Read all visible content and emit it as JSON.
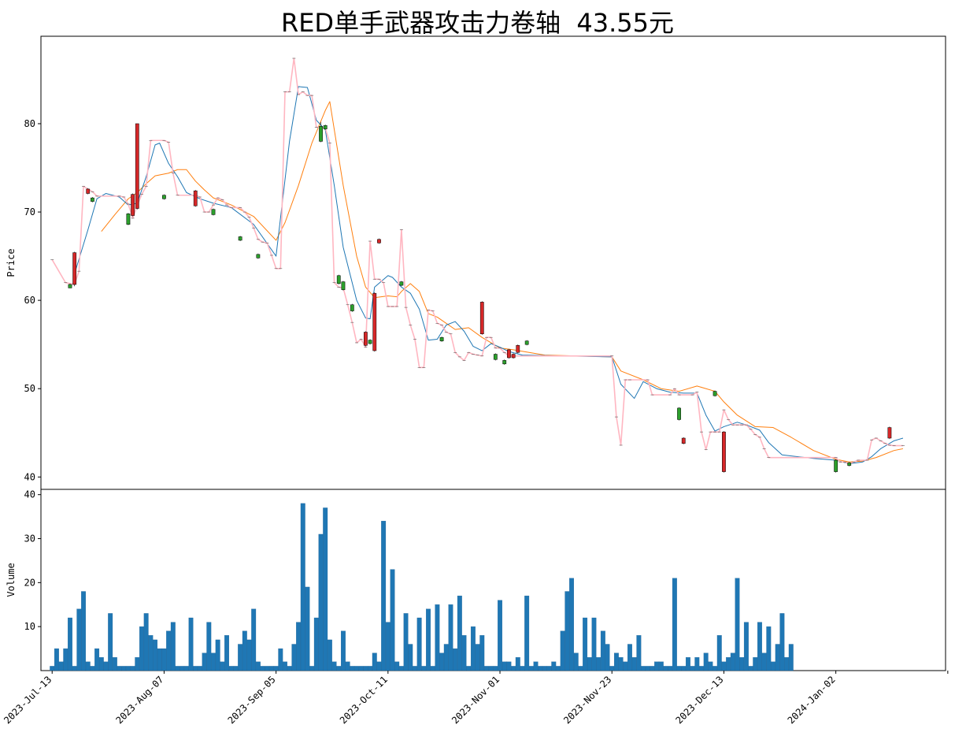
{
  "title": "RED单手武器攻击力卷轴  43.55元",
  "chart_data": {
    "type": "candlestick",
    "price_panel": {
      "ylabel": "Price",
      "yticks": [
        40,
        50,
        60,
        70,
        80
      ],
      "ylim": [
        38.6,
        89.9
      ]
    },
    "volume_panel": {
      "ylabel": "Volume",
      "yticks": [
        10,
        20,
        30,
        40
      ],
      "ylim": [
        0,
        41.2
      ]
    },
    "xlim": [
      -2.5,
      199.5
    ],
    "x_tick_labels": [
      {
        "label": "2023-Jul-13",
        "index": 0
      },
      {
        "label": "2023-Aug-07",
        "index": 25
      },
      {
        "label": "2023-Sep-05",
        "index": 50
      },
      {
        "label": "2023-Oct-11",
        "index": 75
      },
      {
        "label": "2023-Nov-01",
        "index": 100
      },
      {
        "label": "2023-Nov-23",
        "index": 125
      },
      {
        "label": "2023-Dec-13",
        "index": 150
      },
      {
        "label": "2024-Jan-02",
        "index": 175
      },
      {
        "label": "",
        "index": 200
      }
    ],
    "colors": {
      "up": "#d62728",
      "down": "#2ca02c",
      "close_line": "#ffb6c1",
      "ma_fast": "#1f77b4",
      "ma_slow": "#ff7f0e",
      "volume": "#1f77b4"
    },
    "close_keypoints": [
      [
        0,
        64.6
      ],
      [
        3,
        62
      ],
      [
        5,
        61.8
      ],
      [
        6,
        63.3
      ],
      [
        7,
        72.9
      ],
      [
        9,
        72.3
      ],
      [
        10,
        71.8
      ],
      [
        15,
        71.8
      ],
      [
        16,
        71.7
      ],
      [
        17,
        70.9
      ],
      [
        18,
        69.3
      ],
      [
        19,
        70.7
      ],
      [
        20,
        72
      ],
      [
        21,
        72.9
      ],
      [
        22,
        78.1
      ],
      [
        25,
        78.1
      ],
      [
        26,
        77.9
      ],
      [
        27,
        74.4
      ],
      [
        28,
        71.9
      ],
      [
        32,
        71.9
      ],
      [
        33,
        71.7
      ],
      [
        34,
        70
      ],
      [
        35,
        70
      ],
      [
        36,
        70.8
      ],
      [
        37,
        71.6
      ],
      [
        38,
        71.4
      ],
      [
        39,
        70.8
      ],
      [
        40,
        70.5
      ],
      [
        42,
        70.5
      ],
      [
        43,
        70
      ],
      [
        44,
        69.4
      ],
      [
        45,
        68.2
      ],
      [
        46,
        66.9
      ],
      [
        47,
        66.6
      ],
      [
        48,
        66.5
      ],
      [
        49,
        65.1
      ],
      [
        50,
        63.6
      ],
      [
        51,
        63.6
      ],
      [
        52,
        83.6
      ],
      [
        53,
        83.6
      ],
      [
        54,
        87.4
      ],
      [
        55,
        83.3
      ],
      [
        56,
        83.6
      ],
      [
        57,
        83.2
      ],
      [
        58,
        83.2
      ],
      [
        59,
        79.6
      ],
      [
        61,
        79.5
      ],
      [
        62,
        77.8
      ],
      [
        63,
        62
      ],
      [
        64,
        61.5
      ],
      [
        65,
        61.4
      ],
      [
        66,
        59.5
      ],
      [
        67,
        57.5
      ],
      [
        68,
        55.2
      ],
      [
        69,
        55.6
      ],
      [
        70,
        54.7
      ],
      [
        71,
        66.7
      ],
      [
        72,
        62.4
      ],
      [
        73,
        62.4
      ],
      [
        74,
        62
      ],
      [
        75,
        59.3
      ],
      [
        76,
        59.3
      ],
      [
        77,
        59.3
      ],
      [
        78,
        68
      ],
      [
        79,
        59.2
      ],
      [
        80,
        57.2
      ],
      [
        81,
        55.6
      ],
      [
        82,
        52.4
      ],
      [
        83,
        52.4
      ],
      [
        84,
        58.9
      ],
      [
        85,
        58.8
      ],
      [
        86,
        57.4
      ],
      [
        87,
        57.2
      ],
      [
        88,
        56.4
      ],
      [
        89,
        56.2
      ],
      [
        90,
        54.1
      ],
      [
        91,
        53.6
      ],
      [
        92,
        53.2
      ],
      [
        93,
        54.1
      ],
      [
        94,
        53.9
      ],
      [
        95,
        53.8
      ],
      [
        96,
        53.7
      ],
      [
        97,
        55.8
      ],
      [
        98,
        55.8
      ],
      [
        99,
        54.6
      ],
      [
        100,
        54.6
      ],
      [
        101,
        54.1
      ],
      [
        102,
        53.7
      ],
      [
        125,
        53.7
      ],
      [
        126,
        46.8
      ],
      [
        127,
        43.6
      ],
      [
        128,
        51
      ],
      [
        129,
        51
      ],
      [
        133,
        51
      ],
      [
        134,
        49.3
      ],
      [
        138,
        49.3
      ],
      [
        139,
        50
      ],
      [
        140,
        49.3
      ],
      [
        143,
        49.3
      ],
      [
        144,
        49.6
      ],
      [
        145,
        45.1
      ],
      [
        146,
        43.1
      ],
      [
        147,
        45.1
      ],
      [
        148,
        45.1
      ],
      [
        149,
        45.1
      ],
      [
        150,
        47.6
      ],
      [
        151,
        46.5
      ],
      [
        152,
        45.9
      ],
      [
        153,
        45.9
      ],
      [
        154,
        45.9
      ],
      [
        155,
        45.9
      ],
      [
        156,
        45.4
      ],
      [
        157,
        44.8
      ],
      [
        158,
        44.5
      ],
      [
        159,
        43.2
      ],
      [
        160,
        42.2
      ],
      [
        175,
        42.2
      ],
      [
        176,
        41.7
      ],
      [
        177,
        41.7
      ],
      [
        178,
        41.5
      ],
      [
        179,
        41.7
      ],
      [
        180,
        41.9
      ],
      [
        182,
        41.9
      ],
      [
        183,
        44.2
      ],
      [
        184,
        44.4
      ],
      [
        185,
        44.1
      ],
      [
        186,
        43.8
      ],
      [
        187,
        43.6
      ],
      [
        188,
        43.55
      ],
      [
        190,
        43.55
      ]
    ],
    "ma_fast": [
      [
        5,
        63
      ],
      [
        8,
        68
      ],
      [
        10,
        71.5
      ],
      [
        12,
        72.1
      ],
      [
        15,
        71.7
      ],
      [
        17,
        70.8
      ],
      [
        19,
        71
      ],
      [
        21,
        74
      ],
      [
        23,
        77.6
      ],
      [
        24,
        77.8
      ],
      [
        26,
        75.5
      ],
      [
        28,
        74
      ],
      [
        30,
        72.2
      ],
      [
        33,
        71.5
      ],
      [
        36,
        71
      ],
      [
        40,
        70.5
      ],
      [
        45,
        68.6
      ],
      [
        50,
        65
      ],
      [
        53,
        78
      ],
      [
        55,
        84.2
      ],
      [
        57,
        84.1
      ],
      [
        59,
        80.4
      ],
      [
        61,
        79.3
      ],
      [
        63,
        73
      ],
      [
        65,
        66
      ],
      [
        68,
        60
      ],
      [
        70,
        58
      ],
      [
        71,
        57.9
      ],
      [
        72,
        61.5
      ],
      [
        75,
        62.8
      ],
      [
        76,
        62.6
      ],
      [
        78,
        61.5
      ],
      [
        80,
        60.8
      ],
      [
        82,
        59
      ],
      [
        84,
        55.5
      ],
      [
        86,
        55.6
      ],
      [
        88,
        57.2
      ],
      [
        90,
        57.6
      ],
      [
        92,
        56.5
      ],
      [
        94,
        54.8
      ],
      [
        96,
        54.3
      ],
      [
        98,
        55.1
      ],
      [
        100,
        54.7
      ],
      [
        102,
        54.2
      ],
      [
        105,
        53.8
      ],
      [
        125,
        53.6
      ],
      [
        127,
        50.5
      ],
      [
        130,
        48.9
      ],
      [
        132,
        50.8
      ],
      [
        135,
        50
      ],
      [
        138,
        49.6
      ],
      [
        141,
        49.5
      ],
      [
        144,
        49.5
      ],
      [
        146,
        47
      ],
      [
        148,
        45.2
      ],
      [
        150,
        45.7
      ],
      [
        153,
        46.2
      ],
      [
        155,
        45.9
      ],
      [
        158,
        45.3
      ],
      [
        160,
        43.9
      ],
      [
        163,
        42.5
      ],
      [
        170,
        42.1
      ],
      [
        175,
        41.9
      ],
      [
        178,
        41.5
      ],
      [
        181,
        41.7
      ],
      [
        183,
        42.3
      ],
      [
        185,
        43.2
      ],
      [
        188,
        44.1
      ],
      [
        190,
        44.4
      ]
    ],
    "ma_slow": [
      [
        11,
        67.8
      ],
      [
        14,
        69.7
      ],
      [
        17,
        71.5
      ],
      [
        19,
        72.2
      ],
      [
        21,
        73.2
      ],
      [
        23,
        74.1
      ],
      [
        26,
        74.4
      ],
      [
        28,
        74.8
      ],
      [
        30,
        74.8
      ],
      [
        32,
        73.5
      ],
      [
        34,
        72.5
      ],
      [
        36,
        71.6
      ],
      [
        40,
        70.8
      ],
      [
        45,
        69.5
      ],
      [
        50,
        66.8
      ],
      [
        52,
        68.8
      ],
      [
        55,
        73
      ],
      [
        58,
        77.8
      ],
      [
        61,
        81.5
      ],
      [
        62,
        82.5
      ],
      [
        65,
        73
      ],
      [
        68,
        65
      ],
      [
        70,
        61.5
      ],
      [
        72,
        60.3
      ],
      [
        75,
        60.5
      ],
      [
        77,
        60.4
      ],
      [
        78,
        61
      ],
      [
        80,
        61.9
      ],
      [
        82,
        61
      ],
      [
        84,
        58.5
      ],
      [
        86,
        58.1
      ],
      [
        88,
        57.4
      ],
      [
        90,
        56.7
      ],
      [
        93,
        56.9
      ],
      [
        96,
        55.8
      ],
      [
        100,
        54.6
      ],
      [
        103,
        54.4
      ],
      [
        110,
        53.8
      ],
      [
        125,
        53.6
      ],
      [
        127,
        52
      ],
      [
        132,
        51
      ],
      [
        136,
        50
      ],
      [
        140,
        49.7
      ],
      [
        144,
        50.3
      ],
      [
        148,
        49.7
      ],
      [
        150,
        48.5
      ],
      [
        153,
        47
      ],
      [
        157,
        45.7
      ],
      [
        161,
        45.6
      ],
      [
        165,
        44.5
      ],
      [
        170,
        43
      ],
      [
        175,
        42
      ],
      [
        178,
        41.7
      ],
      [
        181,
        41.8
      ],
      [
        184,
        42.2
      ],
      [
        188,
        43
      ],
      [
        190,
        43.2
      ]
    ],
    "candles": [
      {
        "i": 4,
        "o": 61.8,
        "c": 61.4,
        "h": 61.9,
        "l": 61.4
      },
      {
        "i": 5,
        "o": 61.8,
        "c": 65.4,
        "h": 65.5,
        "l": 61.6
      },
      {
        "i": 8,
        "o": 72.1,
        "c": 72.6,
        "h": 72.7,
        "l": 72
      },
      {
        "i": 9,
        "o": 71.6,
        "c": 71.2,
        "h": 71.7,
        "l": 71.1
      },
      {
        "i": 17,
        "o": 69.8,
        "c": 68.6,
        "h": 69.9,
        "l": 68.5
      },
      {
        "i": 18,
        "o": 69.6,
        "c": 72,
        "h": 72.1,
        "l": 69.5
      },
      {
        "i": 19,
        "o": 70.4,
        "c": 80,
        "h": 80,
        "l": 70.3
      },
      {
        "i": 25,
        "o": 71.9,
        "c": 71.5,
        "h": 72,
        "l": 71.4
      },
      {
        "i": 32,
        "o": 70.7,
        "c": 72.4,
        "h": 72.5,
        "l": 70.6
      },
      {
        "i": 36,
        "o": 70.3,
        "c": 69.7,
        "h": 70.4,
        "l": 69.6
      },
      {
        "i": 42,
        "o": 67.2,
        "c": 66.8,
        "h": 67.3,
        "l": 66.7
      },
      {
        "i": 46,
        "o": 65.2,
        "c": 64.8,
        "h": 65.3,
        "l": 64.7
      },
      {
        "i": 60,
        "o": 79.7,
        "c": 78,
        "h": 80.2,
        "l": 77.9
      },
      {
        "i": 61,
        "o": 79.8,
        "c": 79.4,
        "h": 79.9,
        "l": 79.3
      },
      {
        "i": 64,
        "o": 62.8,
        "c": 61.9,
        "h": 62.9,
        "l": 61.8
      },
      {
        "i": 65,
        "o": 62.1,
        "c": 61.2,
        "h": 62.2,
        "l": 61.1
      },
      {
        "i": 67,
        "o": 59.5,
        "c": 58.8,
        "h": 59.6,
        "l": 58.7
      },
      {
        "i": 70,
        "o": 54.9,
        "c": 56.4,
        "h": 56.5,
        "l": 54.8
      },
      {
        "i": 71,
        "o": 55.5,
        "c": 55.1,
        "h": 55.6,
        "l": 55
      },
      {
        "i": 72,
        "o": 54.3,
        "c": 60.8,
        "h": 60.9,
        "l": 54.2
      },
      {
        "i": 73,
        "o": 66.5,
        "c": 66.9,
        "h": 67,
        "l": 66.4
      },
      {
        "i": 78,
        "o": 62.1,
        "c": 61.7,
        "h": 62.2,
        "l": 61.6
      },
      {
        "i": 87,
        "o": 55.8,
        "c": 55.4,
        "h": 55.9,
        "l": 55.3
      },
      {
        "i": 96,
        "o": 56.2,
        "c": 59.8,
        "h": 59.9,
        "l": 56.1
      },
      {
        "i": 99,
        "o": 53.9,
        "c": 53.3,
        "h": 54,
        "l": 53.2
      },
      {
        "i": 101,
        "o": 53.2,
        "c": 52.8,
        "h": 53.3,
        "l": 52.7
      },
      {
        "i": 102,
        "o": 53.5,
        "c": 54.4,
        "h": 54.5,
        "l": 53.4
      },
      {
        "i": 103,
        "o": 53.5,
        "c": 53.9,
        "h": 54,
        "l": 53.4
      },
      {
        "i": 104,
        "o": 54.1,
        "c": 54.9,
        "h": 55,
        "l": 54
      },
      {
        "i": 106,
        "o": 55.4,
        "c": 55,
        "h": 55.5,
        "l": 54.9
      },
      {
        "i": 140,
        "o": 47.8,
        "c": 46.5,
        "h": 47.9,
        "l": 46.4
      },
      {
        "i": 141,
        "o": 43.8,
        "c": 44.4,
        "h": 44.5,
        "l": 43.7
      },
      {
        "i": 148,
        "o": 49.7,
        "c": 49.2,
        "h": 49.8,
        "l": 49.1
      },
      {
        "i": 150,
        "o": 40.6,
        "c": 45.1,
        "h": 45.2,
        "l": 40.5
      },
      {
        "i": 175,
        "o": 41.9,
        "c": 40.6,
        "h": 42,
        "l": 40.5
      },
      {
        "i": 178,
        "o": 41.6,
        "c": 41.3,
        "h": 41.7,
        "l": 41.2
      },
      {
        "i": 187,
        "o": 44.4,
        "c": 45.6,
        "h": 45.7,
        "l": 44.3
      }
    ],
    "volume": [
      1,
      5,
      2,
      5,
      12,
      1,
      14,
      18,
      2,
      1,
      5,
      3,
      2,
      13,
      3,
      1,
      1,
      1,
      1,
      3,
      10,
      13,
      8,
      7,
      5,
      5,
      9,
      11,
      1,
      1,
      1,
      12,
      1,
      1,
      4,
      11,
      4,
      7,
      2,
      8,
      1,
      1,
      6,
      9,
      7,
      14,
      2,
      1,
      1,
      1,
      1,
      5,
      2,
      1,
      6,
      11,
      38,
      19,
      1,
      12,
      31,
      37,
      7,
      2,
      1,
      9,
      2,
      1,
      1,
      1,
      1,
      1,
      4,
      2,
      34,
      11,
      23,
      2,
      1,
      13,
      6,
      1,
      12,
      1,
      14,
      1,
      15,
      4,
      6,
      15,
      5,
      17,
      8,
      1,
      10,
      6,
      8,
      1,
      1,
      1,
      16,
      2,
      2,
      1,
      3,
      1,
      17,
      1,
      2,
      1,
      1,
      1,
      2,
      1,
      9,
      18,
      21,
      4,
      1,
      12,
      3,
      12,
      3,
      9,
      6,
      1,
      4,
      3,
      2,
      6,
      3,
      8,
      1,
      1,
      1,
      2,
      2,
      1,
      1,
      21,
      1,
      1,
      3,
      1,
      3,
      1,
      4,
      2,
      1,
      8,
      2,
      3,
      4,
      21,
      3,
      11,
      1,
      3,
      11,
      4,
      10,
      2,
      6,
      13,
      3,
      6
    ]
  }
}
